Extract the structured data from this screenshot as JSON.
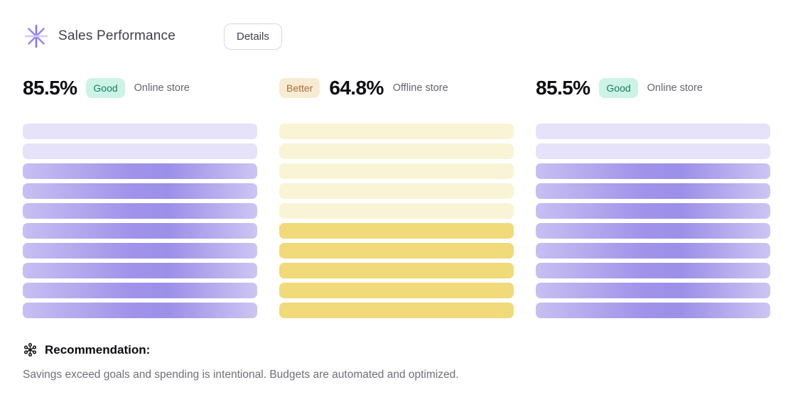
{
  "header": {
    "title": "Sales Performance",
    "details_label": "Details",
    "sparkle_icon": "sparkle-icon"
  },
  "theme": {
    "title-color": "#3f4049",
    "value-color": "#0d0d12",
    "label-color": "#63646e",
    "body-text": "#6e6f7a",
    "btn-border": "#d9d4f2",
    "good-bg": "#ccf3e6",
    "good-text": "#157f62",
    "better-bg": "#f7ecd3",
    "better-text": "#b06a38",
    "accent-purple": "#8b74ee"
  },
  "columns": [
    {
      "value": "85.5%",
      "badge": "Good",
      "badge_variant": "good",
      "label": "Online store",
      "bars": {
        "count": 10,
        "muted_count": 2,
        "muted_color": "#e5e2fa",
        "strong_css": "linear-gradient(90deg, #c8bff2 0%, #a193ea 45%, #9c8fe8 62%, #cdc5f3 100%)"
      }
    },
    {
      "value": "64.8%",
      "badge": "Better",
      "badge_variant": "better",
      "label": "Offline store",
      "bars": {
        "count": 10,
        "muted_count": 5,
        "muted_color": "#faf4d6",
        "strong_css": "#f0da79"
      }
    },
    {
      "value": "85.5%",
      "badge": "Good",
      "badge_variant": "good",
      "label": "Online store",
      "bars": {
        "count": 10,
        "muted_count": 2,
        "muted_color": "#e5e2fa",
        "strong_css": "linear-gradient(90deg, #c8bff2 0%, #a193ea 45%, #9c8fe8 62%, #cdc5f3 100%)"
      }
    }
  ],
  "recommendation": {
    "icon": "molecule-icon",
    "heading": "Recommendation:",
    "text": "Savings exceed goals and spending is intentional. Budgets are automated and optimized."
  },
  "chart_data": [
    {
      "type": "bar",
      "orientation": "horizontal",
      "label": "Online store",
      "value_pct": 85.5,
      "rating": "Good",
      "bars_total": 10,
      "bars_highlighted": 8
    },
    {
      "type": "bar",
      "orientation": "horizontal",
      "label": "Offline store",
      "value_pct": 64.8,
      "rating": "Better",
      "bars_total": 10,
      "bars_highlighted": 5
    },
    {
      "type": "bar",
      "orientation": "horizontal",
      "label": "Online store",
      "value_pct": 85.5,
      "rating": "Good",
      "bars_total": 10,
      "bars_highlighted": 8
    }
  ]
}
